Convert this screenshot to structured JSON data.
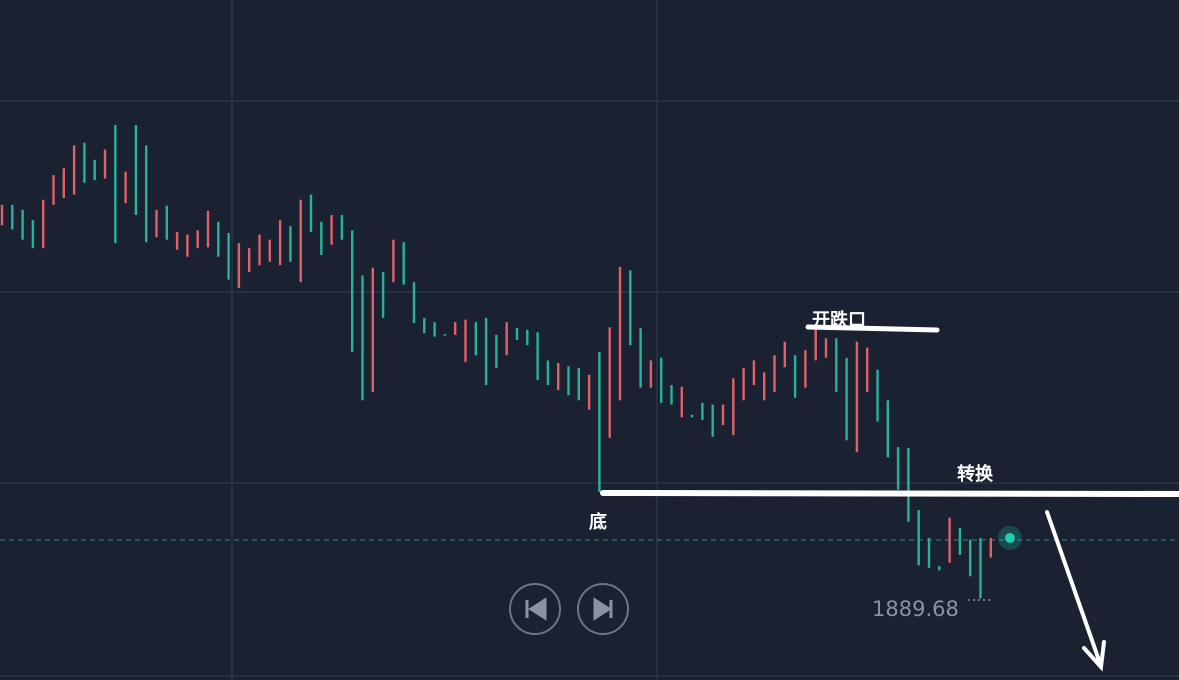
{
  "chart_data": {
    "type": "candlestick",
    "open": [
      1933.5,
      1935.9,
      1935.3,
      1934.1,
      1930.8,
      1935.9,
      1936.7,
      1937.1,
      1943.2,
      1941.2,
      1939,
      1945.3,
      1936.1,
      1945.3,
      1942.9,
      1932.1,
      1935.8,
      1930.6,
      1929.8,
      1930.8,
      1930.9,
      1933.9,
      1932.6,
      1926.1,
      1928,
      1928.8,
      1929.2,
      1928.8,
      1933.4,
      1926.8,
      1937.1,
      1933.9,
      1931.2,
      1934.7,
      1932.9,
      1927.6,
      1913.9,
      1928,
      1926.8,
      1931.5,
      1926.8,
      1922.6,
      1922.1,
      1920.7,
      1920.6,
      1917.4,
      1922.1,
      1922.6,
      1920.6,
      1918.2,
      1921.4,
      1921.2,
      1920.9,
      1917.6,
      1914.1,
      1916.9,
      1916.7,
      1911.8,
      1918.6,
      1908.5,
      1912.9,
      1928.2,
      1921.4,
      1914.4,
      1917.9,
      1914.7,
      1910.9,
      1911.2,
      1912.6,
      1912.4,
      1910,
      1908.8,
      1912.9,
      1914.7,
      1912.9,
      1913.9,
      1916.8,
      1918.2,
      1914.4,
      1917.6,
      1917.9,
      1920.2,
      1917.9,
      1906.8,
      1913.9,
      1916.5,
      1912.9,
      1907.4,
      1907.3,
      1900,
      1896.7,
      1893.4,
      1893.8,
      1897.9,
      1896.5,
      1896.7,
      1894.4
    ],
    "close": [
      1935.9,
      1933,
      1931.8,
      1930.8,
      1936.5,
      1939.4,
      1940.2,
      1942.9,
      1938.5,
      1938.8,
      1942.4,
      1931.4,
      1939.8,
      1934.7,
      1931.5,
      1935.3,
      1931.8,
      1932.7,
      1932.4,
      1932.9,
      1935.2,
      1929.8,
      1927.1,
      1931.4,
      1930.8,
      1932.4,
      1931.8,
      1934.1,
      1929.2,
      1936.5,
      1932.7,
      1930,
      1934.7,
      1931.8,
      1918.6,
      1912.9,
      1928.5,
      1922.6,
      1931.8,
      1926.5,
      1922,
      1920.8,
      1920.4,
      1920.5,
      1922.1,
      1922.4,
      1918.2,
      1914.7,
      1916.7,
      1922.1,
      1920,
      1919.4,
      1915.3,
      1914.7,
      1917.3,
      1913.5,
      1912.9,
      1915.9,
      1902.1,
      1921.5,
      1928.6,
      1919.4,
      1914.4,
      1917.6,
      1912.6,
      1912.4,
      1914.5,
      1910.9,
      1910.6,
      1908.6,
      1912.4,
      1915.5,
      1916.7,
      1917.6,
      1916.2,
      1918.2,
      1919.8,
      1913.2,
      1918.8,
      1921.8,
      1920.2,
      1913.9,
      1908.2,
      1919.8,
      1919.1,
      1910.4,
      1906.2,
      1902.4,
      1898.6,
      1893.5,
      1893.2,
      1892.9,
      1899.1,
      1894.7,
      1892.2,
      1889.6,
      1896.7
    ],
    "up_color": "#e0606c",
    "down_color": "#26b39a",
    "ylim": [
      1880,
      1960
    ],
    "annotations": [
      "开跌口",
      "转换",
      "底"
    ],
    "price_label": "1889.68"
  }
}
